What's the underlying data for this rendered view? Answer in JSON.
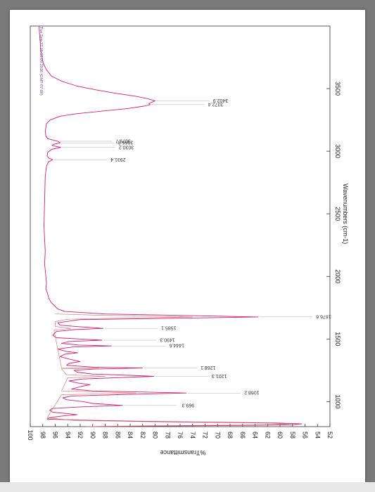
{
  "chart_data": {
    "type": "line",
    "x_axis": {
      "label": "Wavenumbers (cm-1)",
      "range": [
        4000,
        800
      ],
      "ticks": [
        3500,
        3000,
        2500,
        2000,
        1500,
        1000
      ]
    },
    "y_axis": {
      "label": "%Transmittance",
      "range": [
        52,
        100
      ],
      "ticks": [
        100,
        98,
        96,
        94,
        92,
        90,
        88,
        86,
        84,
        82,
        80,
        78,
        76,
        74,
        72,
        70,
        68,
        66,
        64,
        62,
        60,
        58,
        56,
        54,
        52
      ]
    },
    "stamp": "Tue Sep 27 15:53:09 2016 (GMT-07:00)",
    "series": [
      {
        "color": "#d21f6e",
        "points": [
          [
            4000,
            98.6
          ],
          [
            3800,
            98.3
          ],
          [
            3700,
            97.9
          ],
          [
            3650,
            97.4
          ],
          [
            3600,
            96.6
          ],
          [
            3560,
            95.0
          ],
          [
            3520,
            92.5
          ],
          [
            3490,
            89.5
          ],
          [
            3460,
            86.0
          ],
          [
            3440,
            83.2
          ],
          [
            3420,
            81.2
          ],
          [
            3402.9,
            80.0
          ],
          [
            3390,
            80.6
          ],
          [
            3380,
            81.0
          ],
          [
            3372.4,
            80.8
          ],
          [
            3360,
            81.8
          ],
          [
            3340,
            84.5
          ],
          [
            3320,
            88.5
          ],
          [
            3300,
            92.5
          ],
          [
            3280,
            95.2
          ],
          [
            3250,
            96.8
          ],
          [
            3220,
            97.4
          ],
          [
            3160,
            97.6
          ],
          [
            3120,
            97.5
          ],
          [
            3100,
            97.2
          ],
          [
            3079.7,
            95.6
          ],
          [
            3066.8,
            95.2
          ],
          [
            3055,
            96.3
          ],
          [
            3045,
            96.5
          ],
          [
            3030.2,
            95.1
          ],
          [
            3015,
            96.6
          ],
          [
            2990,
            97.2
          ],
          [
            2960,
            97.3
          ],
          [
            2945,
            97.0
          ],
          [
            2931.4,
            96.4
          ],
          [
            2915,
            97.1
          ],
          [
            2880,
            97.4
          ],
          [
            2800,
            97.6
          ],
          [
            2600,
            97.7
          ],
          [
            2400,
            97.8
          ],
          [
            2300,
            97.7
          ],
          [
            2200,
            97.6
          ],
          [
            2100,
            97.7
          ],
          [
            2000,
            97.5
          ],
          [
            1950,
            97.4
          ],
          [
            1900,
            97.5
          ],
          [
            1860,
            97.2
          ],
          [
            1820,
            97.0
          ],
          [
            1790,
            96.6
          ],
          [
            1760,
            96.0
          ],
          [
            1740,
            95.6
          ],
          [
            1720,
            94.5
          ],
          [
            1700,
            88.0
          ],
          [
            1685,
            72.0
          ],
          [
            1676.6,
            63.5
          ],
          [
            1668,
            74.0
          ],
          [
            1655,
            92.0
          ],
          [
            1630,
            95.6
          ],
          [
            1610,
            95.2
          ],
          [
            1598,
            92.0
          ],
          [
            1585.1,
            88.3
          ],
          [
            1575,
            93.0
          ],
          [
            1560,
            95.8
          ],
          [
            1530,
            96.4
          ],
          [
            1510,
            95.8
          ],
          [
            1500,
            92.0
          ],
          [
            1490.3,
            88.5
          ],
          [
            1480,
            93.8
          ],
          [
            1465,
            95.0
          ],
          [
            1452,
            92.2
          ],
          [
            1444.6,
            87.0
          ],
          [
            1436,
            93.2
          ],
          [
            1420,
            95.6
          ],
          [
            1400,
            94.2
          ],
          [
            1390,
            92.4
          ],
          [
            1378,
            94.5
          ],
          [
            1360,
            95.2
          ],
          [
            1340,
            93.8
          ],
          [
            1320,
            92.0
          ],
          [
            1305,
            93.8
          ],
          [
            1290,
            94.2
          ],
          [
            1275,
            89.8
          ],
          [
            1268.1,
            82.0
          ],
          [
            1260,
            89.8
          ],
          [
            1250,
            93.0
          ],
          [
            1235,
            92.5
          ],
          [
            1220,
            90.0
          ],
          [
            1210,
            84.0
          ],
          [
            1201.3,
            80.2
          ],
          [
            1192,
            85.5
          ],
          [
            1180,
            91.8
          ],
          [
            1165,
            93.8
          ],
          [
            1150,
            92.5
          ],
          [
            1135,
            90.4
          ],
          [
            1120,
            91.9
          ],
          [
            1100,
            93.4
          ],
          [
            1085,
            90.0
          ],
          [
            1068.2,
            75.0
          ],
          [
            1058,
            84.0
          ],
          [
            1045,
            93.4
          ],
          [
            1030,
            94.8
          ],
          [
            1015,
            94.2
          ],
          [
            1000,
            91.5
          ],
          [
            985,
            90.0
          ],
          [
            969.3,
            85.2
          ],
          [
            958,
            92.0
          ],
          [
            945,
            96.5
          ],
          [
            930,
            96.9
          ],
          [
            915,
            96.4
          ],
          [
            905,
            94.2
          ],
          [
            895,
            92.5
          ],
          [
            885,
            95.0
          ],
          [
            870,
            97.0
          ],
          [
            860,
            97.3
          ],
          [
            852,
            92.0
          ],
          [
            842,
            82.0
          ],
          [
            835,
            69.0
          ],
          [
            828,
            60.0
          ],
          [
            822,
            56.5
          ],
          [
            815,
            58.0
          ],
          [
            810,
            65.0
          ],
          [
            805,
            80.0
          ],
          [
            800,
            90.0
          ]
        ]
      },
      {
        "color": "#c86a6a",
        "points": [
          [
            1700,
            96.0
          ],
          [
            1690,
            89.0
          ],
          [
            1682,
            80.0
          ],
          [
            1676.6,
            74.0
          ],
          [
            1668,
            84.0
          ],
          [
            1658,
            94.0
          ],
          [
            1640,
            96.0
          ],
          [
            1600,
            96.0
          ],
          [
            1585.1,
            93.5
          ],
          [
            1570,
            96.2
          ],
          [
            1270,
            95.0
          ],
          [
            1268.1,
            89.0
          ],
          [
            1262,
            95.0
          ],
          [
            1215,
            94.2
          ],
          [
            1201.3,
            88.0
          ],
          [
            1190,
            94.0
          ],
          [
            1085,
            95.0
          ],
          [
            1068.2,
            83.0
          ],
          [
            1055,
            95.0
          ],
          [
            870,
            97.3
          ],
          [
            850,
            93.0
          ],
          [
            838,
            80.0
          ],
          [
            828,
            62.0
          ],
          [
            822,
            58.5
          ],
          [
            815,
            62.0
          ],
          [
            806,
            82.0
          ],
          [
            800,
            91.0
          ]
        ]
      }
    ],
    "annotations": [
      {
        "x": 3402.9,
        "label": "3402.9"
      },
      {
        "x": 3372.4,
        "label": "3372.4"
      },
      {
        "x": 3079.7,
        "label": "3079.7"
      },
      {
        "x": 3066.8,
        "label": "3066.8"
      },
      {
        "x": 3030.2,
        "label": "3030.2"
      },
      {
        "x": 2931.4,
        "label": "2931.4"
      },
      {
        "x": 1676.6,
        "label": "1676.6"
      },
      {
        "x": 1585.1,
        "label": "1585.1"
      },
      {
        "x": 1490.3,
        "label": "1490.3"
      },
      {
        "x": 1444.6,
        "label": "1444.6"
      },
      {
        "x": 1268.1,
        "label": "1268.1"
      },
      {
        "x": 1201.3,
        "label": "1201.3"
      },
      {
        "x": 1068.2,
        "label": "1068.2"
      },
      {
        "x": 969.3,
        "label": "969.3"
      }
    ]
  }
}
